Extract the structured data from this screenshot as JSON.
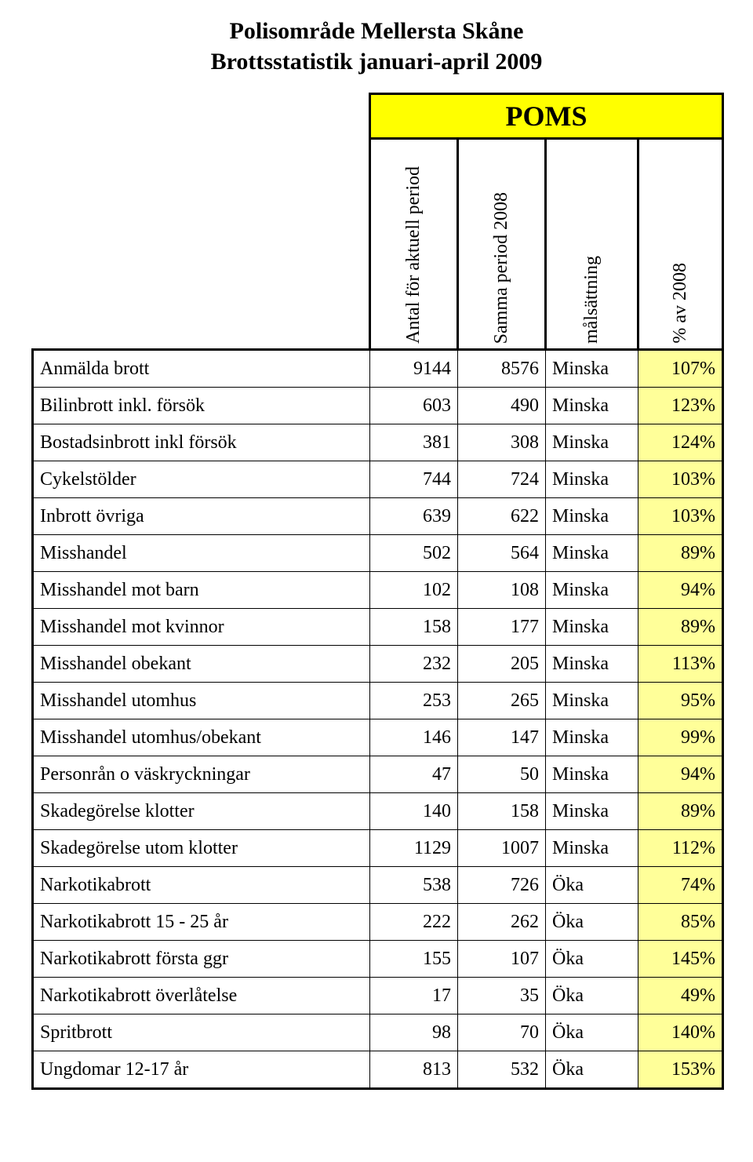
{
  "title_line1": "Polisområde Mellersta Skåne",
  "title_line2": "Brottsstatistik  januari-april 2009",
  "banner": "POMS",
  "headers": {
    "c1": "Antal för aktuell period",
    "c2": "Samma period 2008",
    "c3": "målsättning",
    "c4": "% av  2008"
  },
  "colors": {
    "banner_bg": "#ffff00",
    "pct_bg": "#ffff99",
    "border": "#000000",
    "text": "#000000",
    "page_bg": "#ffffff"
  },
  "rows": [
    {
      "label": "Anmälda brott",
      "v1": "9144",
      "v2": "8576",
      "goal": "Minska",
      "pct": "107%"
    },
    {
      "label": "Bilinbrott  inkl. försök",
      "v1": "603",
      "v2": "490",
      "goal": "Minska",
      "pct": "123%"
    },
    {
      "label": "Bostadsinbrott  inkl försök",
      "v1": "381",
      "v2": "308",
      "goal": "Minska",
      "pct": "124%"
    },
    {
      "label": "Cykelstölder",
      "v1": "744",
      "v2": "724",
      "goal": "Minska",
      "pct": "103%"
    },
    {
      "label": "Inbrott  övriga",
      "v1": "639",
      "v2": "622",
      "goal": "Minska",
      "pct": "103%"
    },
    {
      "label": "Misshandel",
      "v1": "502",
      "v2": "564",
      "goal": "Minska",
      "pct": "89%"
    },
    {
      "label": "Misshandel mot barn",
      "v1": "102",
      "v2": "108",
      "goal": "Minska",
      "pct": "94%"
    },
    {
      "label": "Misshandel mot kvinnor",
      "v1": "158",
      "v2": "177",
      "goal": "Minska",
      "pct": "89%"
    },
    {
      "label": "Misshandel obekant",
      "v1": "232",
      "v2": "205",
      "goal": "Minska",
      "pct": "113%"
    },
    {
      "label": "Misshandel utomhus",
      "v1": "253",
      "v2": "265",
      "goal": "Minska",
      "pct": "95%"
    },
    {
      "label": "Misshandel utomhus/obekant",
      "v1": "146",
      "v2": "147",
      "goal": "Minska",
      "pct": "99%"
    },
    {
      "label": "Personrån o väskryckningar",
      "v1": "47",
      "v2": "50",
      "goal": "Minska",
      "pct": "94%"
    },
    {
      "label": "Skadegörelse klotter",
      "v1": "140",
      "v2": "158",
      "goal": "Minska",
      "pct": "89%"
    },
    {
      "label": "Skadegörelse utom klotter",
      "v1": "1129",
      "v2": "1007",
      "goal": "Minska",
      "pct": "112%"
    },
    {
      "label": "Narkotikabrott",
      "v1": "538",
      "v2": "726",
      "goal": "Öka",
      "pct": "74%"
    },
    {
      "label": "Narkotikabrott  15 - 25 år",
      "v1": "222",
      "v2": "262",
      "goal": "Öka",
      "pct": "85%"
    },
    {
      "label": "Narkotikabrott första ggr",
      "v1": "155",
      "v2": "107",
      "goal": "Öka",
      "pct": "145%"
    },
    {
      "label": "Narkotikabrott överlåtelse",
      "v1": "17",
      "v2": "35",
      "goal": "Öka",
      "pct": "49%"
    },
    {
      "label": "Spritbrott",
      "v1": "98",
      "v2": "70",
      "goal": "Öka",
      "pct": "140%"
    },
    {
      "label": "Ungdomar  12-17 år",
      "v1": "813",
      "v2": "532",
      "goal": "Öka",
      "pct": "153%"
    }
  ]
}
